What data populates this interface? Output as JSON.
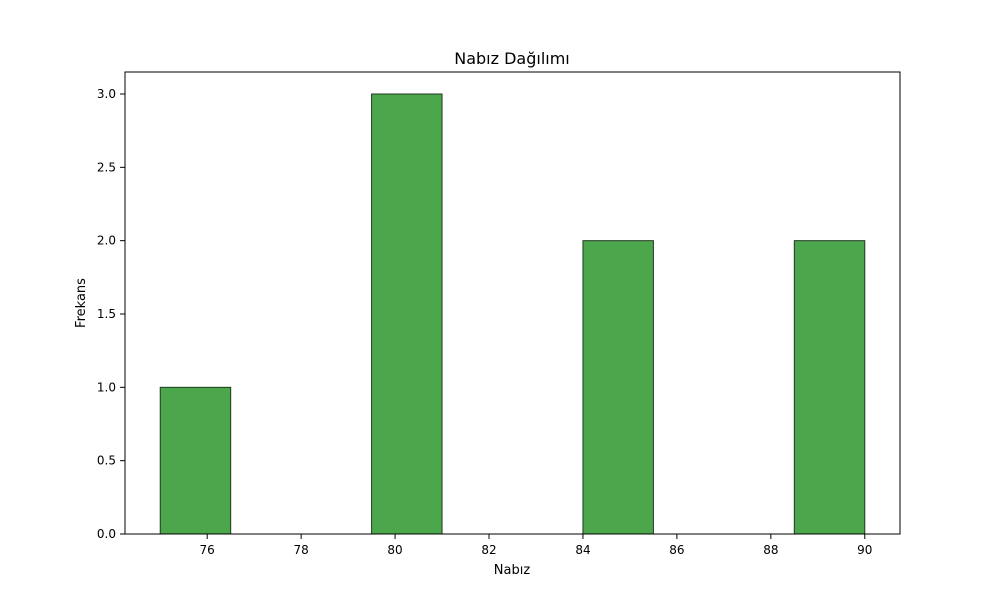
{
  "chart_data": {
    "type": "bar",
    "title": "Nabız Dağılımı",
    "xlabel": "Nabız",
    "ylabel": "Frekans",
    "bin_edges": [
      75,
      76.5,
      78,
      79.5,
      81,
      82.5,
      84,
      85.5,
      87,
      88.5,
      90
    ],
    "values": [
      1,
      0,
      0,
      3,
      0,
      0,
      2,
      0,
      0,
      2
    ],
    "xlim": [
      74.25,
      90.75
    ],
    "ylim": [
      0,
      3.15
    ],
    "xticks": [
      76,
      78,
      80,
      82,
      84,
      86,
      88,
      90
    ],
    "xtick_labels": [
      "76",
      "78",
      "80",
      "82",
      "84",
      "86",
      "88",
      "90"
    ],
    "yticks": [
      0,
      0.5,
      1,
      1.5,
      2,
      2.5,
      3
    ],
    "ytick_labels": [
      "0.0",
      "0.5",
      "1.0",
      "1.5",
      "2.0",
      "2.5",
      "3.0"
    ],
    "grid": false,
    "colors": {
      "bar_fill": "#4ca64c",
      "bar_edge": "#1f3a1f",
      "axis": "#000000"
    }
  }
}
